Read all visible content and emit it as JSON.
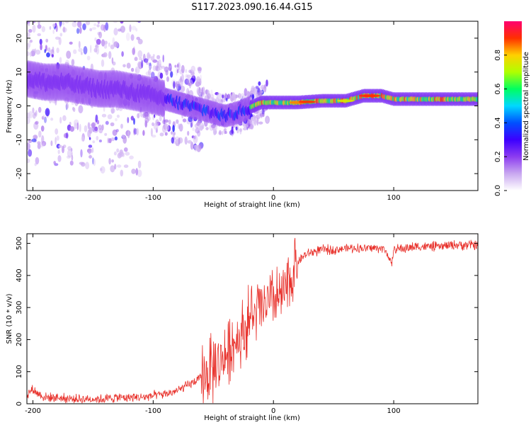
{
  "figure": {
    "title": "S117.2023.090.16.44.G15"
  },
  "chart_data": [
    {
      "type": "heatmap",
      "xlabel": "Height of straight line (km)",
      "ylabel": "Frequency (Hz)",
      "xlim": [
        -205,
        170
      ],
      "ylim": [
        -25,
        25
      ],
      "x_ticks": [
        -200,
        -100,
        0,
        100
      ],
      "y_ticks": [
        -20,
        -10,
        0,
        10,
        20
      ],
      "colorbar": {
        "label": "Normalized spectral amplitude",
        "range": [
          0,
          1
        ],
        "ticks": [
          0.0,
          0.2,
          0.4,
          0.6,
          0.8
        ],
        "tick_labels": [
          "0.0",
          "0.2",
          "0.4",
          "0.6",
          "0.8"
        ],
        "colors": [
          "#ffffff",
          "#c9a8f0",
          "#8c3cf0",
          "#3c00ff",
          "#0050ff",
          "#00d8ff",
          "#00ff60",
          "#b0ff00",
          "#ffd000",
          "#ff3000",
          "#ff0070"
        ]
      },
      "ridge": {
        "x": [
          -205,
          -190,
          -175,
          -160,
          -145,
          -130,
          -115,
          -100,
          -90,
          -80,
          -70,
          -60,
          -50,
          -40,
          -30,
          -20,
          -10,
          0,
          20,
          40,
          60,
          75,
          90,
          100,
          120,
          150,
          170
        ],
        "freq": [
          8,
          7,
          7,
          6,
          5,
          5,
          4,
          3,
          2,
          1,
          0,
          -1,
          -2,
          -3,
          -2,
          -0.5,
          1,
          1,
          1,
          1.5,
          1.5,
          3,
          3,
          2,
          2,
          2,
          2
        ]
      }
    },
    {
      "type": "line",
      "xlabel": "Height of straight line (km)",
      "ylabel": "SNR (10 * v/v)",
      "xlim": [
        -205,
        170
      ],
      "ylim": [
        0,
        530
      ],
      "x_ticks": [
        -200,
        -100,
        0,
        100
      ],
      "y_ticks": [
        0,
        100,
        200,
        300,
        400,
        500
      ],
      "series": [
        {
          "color": "#e8302a",
          "x": [
            -205,
            -200,
            -195,
            -190,
            -180,
            -170,
            -160,
            -150,
            -140,
            -130,
            -120,
            -110,
            -100,
            -90,
            -80,
            -70,
            -60,
            -50,
            -45,
            -40,
            -35,
            -30,
            -25,
            -20,
            -15,
            -10,
            -5,
            0,
            5,
            10,
            15,
            20,
            25,
            30,
            40,
            50,
            60,
            70,
            80,
            90,
            95,
            98,
            100,
            110,
            120,
            130,
            140,
            150,
            160,
            170
          ],
          "y": [
            30,
            45,
            30,
            20,
            20,
            15,
            15,
            15,
            15,
            20,
            20,
            20,
            25,
            30,
            40,
            60,
            80,
            110,
            130,
            150,
            180,
            200,
            230,
            260,
            280,
            300,
            310,
            320,
            330,
            350,
            400,
            440,
            460,
            470,
            480,
            480,
            485,
            485,
            485,
            485,
            470,
            430,
            480,
            485,
            490,
            490,
            490,
            495,
            495,
            495
          ]
        }
      ]
    }
  ]
}
